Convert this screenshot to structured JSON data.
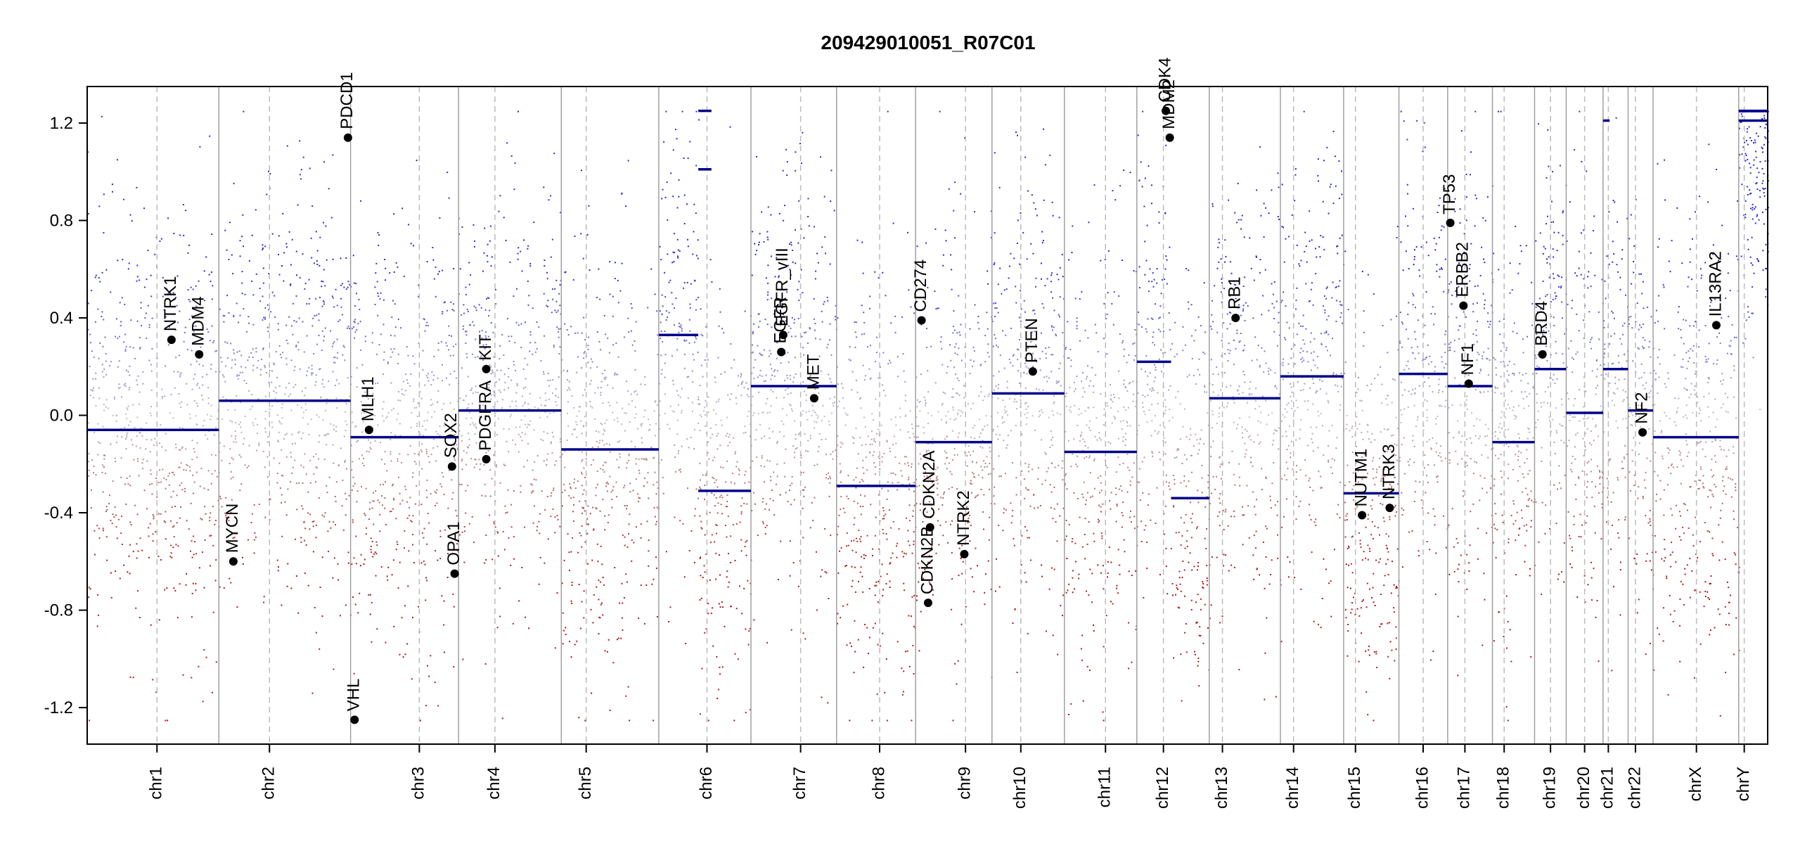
{
  "chart_data": {
    "type": "scatter",
    "title": "209429010051_R07C01",
    "xlabel": "",
    "ylabel": "",
    "ylim": [
      -1.35,
      1.35
    ],
    "yticks": [
      -1.2,
      -0.8,
      -0.4,
      0.0,
      0.4,
      0.8,
      1.2
    ],
    "ytick_labels": [
      "-1.2",
      "-0.8",
      "-0.4",
      "0.0",
      "0.4",
      "0.8",
      "1.2"
    ],
    "colors": {
      "gain": "#2b2bd4",
      "loss": "#b01818",
      "neutral": "#b8b8b8",
      "segment": "#00008b",
      "gene_point": "#000000"
    },
    "chromosomes": [
      {
        "name": "chr1",
        "start": 0,
        "end": 1000,
        "centromere": 530
      },
      {
        "name": "chr2",
        "start": 1000,
        "end": 2000,
        "centromere": 384
      },
      {
        "name": "chr3",
        "start": 2000,
        "end": 2820,
        "centromere": 522
      },
      {
        "name": "chr4",
        "start": 2820,
        "end": 3600,
        "centromere": 276
      },
      {
        "name": "chr5",
        "start": 3600,
        "end": 4340,
        "centromere": 189
      },
      {
        "name": "chr6",
        "start": 4340,
        "end": 5040,
        "centromere": 366
      },
      {
        "name": "chr7",
        "start": 5040,
        "end": 5690,
        "centromere": 377
      },
      {
        "name": "chr8",
        "start": 5690,
        "end": 6290,
        "centromere": 327
      },
      {
        "name": "chr9",
        "start": 6290,
        "end": 6870,
        "centromere": 379
      },
      {
        "name": "chr10",
        "start": 6870,
        "end": 7420,
        "centromere": 219
      },
      {
        "name": "chr11",
        "start": 7420,
        "end": 7970,
        "centromere": 312
      },
      {
        "name": "chr12",
        "start": 7970,
        "end": 8520,
        "centromere": 202
      },
      {
        "name": "chr13",
        "start": 8520,
        "end": 9060,
        "centromere": 100
      },
      {
        "name": "chr14",
        "start": 9060,
        "end": 9540,
        "centromere": 100
      },
      {
        "name": "chr15",
        "start": 9540,
        "end": 9960,
        "centromere": 90
      },
      {
        "name": "chr16",
        "start": 9960,
        "end": 10330,
        "centromere": 184
      },
      {
        "name": "chr17",
        "start": 10330,
        "end": 10670,
        "centromere": 131
      },
      {
        "name": "chr18",
        "start": 10670,
        "end": 10990,
        "centromere": 89
      },
      {
        "name": "chr19",
        "start": 10990,
        "end": 11230,
        "centromere": 121
      },
      {
        "name": "chr20",
        "start": 11230,
        "end": 11510,
        "centromere": 140
      },
      {
        "name": "chr21",
        "start": 11510,
        "end": 11700,
        "centromere": 40
      },
      {
        "name": "chr22",
        "start": 11700,
        "end": 11890,
        "centromere": 56
      },
      {
        "name": "chrX",
        "start": 11890,
        "end": 12540,
        "centromere": 329
      },
      {
        "name": "chrY",
        "start": 12540,
        "end": 12760,
        "centromere": 42
      }
    ],
    "segments": [
      {
        "chr": "chr1",
        "from": 0,
        "to": 1000,
        "value": -0.06
      },
      {
        "chr": "chr2",
        "from": 1000,
        "to": 2000,
        "value": 0.06
      },
      {
        "chr": "chr3",
        "from": 2000,
        "to": 2820,
        "value": -0.09
      },
      {
        "chr": "chr4",
        "from": 2820,
        "to": 3600,
        "value": 0.02
      },
      {
        "chr": "chr5",
        "from": 3600,
        "to": 4340,
        "value": -0.14
      },
      {
        "chr": "chr6",
        "from": 4340,
        "to": 4640,
        "value": 0.33
      },
      {
        "chr": "chr6",
        "from": 4640,
        "to": 5040,
        "value": -0.31
      },
      {
        "chr": "chr6",
        "from": 4640,
        "to": 4740,
        "value": 1.01
      },
      {
        "chr": "chr6",
        "from": 4640,
        "to": 4740,
        "value": 1.25
      },
      {
        "chr": "chr7",
        "from": 5040,
        "to": 5690,
        "value": 0.12
      },
      {
        "chr": "chr8",
        "from": 5690,
        "to": 6290,
        "value": -0.29
      },
      {
        "chr": "chr9",
        "from": 6290,
        "to": 6870,
        "value": -0.11
      },
      {
        "chr": "chr10",
        "from": 6870,
        "to": 7420,
        "value": 0.09
      },
      {
        "chr": "chr11",
        "from": 7420,
        "to": 7970,
        "value": -0.15
      },
      {
        "chr": "chr12",
        "from": 7970,
        "to": 8230,
        "value": 0.22
      },
      {
        "chr": "chr12",
        "from": 8230,
        "to": 8520,
        "value": -0.34
      },
      {
        "chr": "chr13",
        "from": 8520,
        "to": 9060,
        "value": 0.07
      },
      {
        "chr": "chr14",
        "from": 9060,
        "to": 9540,
        "value": 0.16
      },
      {
        "chr": "chr15",
        "from": 9540,
        "to": 9960,
        "value": -0.32
      },
      {
        "chr": "chr16",
        "from": 9960,
        "to": 10330,
        "value": 0.17
      },
      {
        "chr": "chr17",
        "from": 10330,
        "to": 10670,
        "value": 0.12
      },
      {
        "chr": "chr18",
        "from": 10670,
        "to": 10990,
        "value": -0.11
      },
      {
        "chr": "chr19",
        "from": 10990,
        "to": 11230,
        "value": 0.19
      },
      {
        "chr": "chr20",
        "from": 11230,
        "to": 11510,
        "value": 0.01
      },
      {
        "chr": "chr21",
        "from": 11510,
        "to": 11700,
        "value": 0.19
      },
      {
        "chr": "chr21",
        "from": 11510,
        "to": 11560,
        "value": 1.21
      },
      {
        "chr": "chr22",
        "from": 11700,
        "to": 11890,
        "value": 0.02
      },
      {
        "chr": "chrX",
        "from": 11890,
        "to": 12540,
        "value": -0.09
      },
      {
        "chr": "chrY",
        "from": 12540,
        "to": 12760,
        "value": 1.21
      },
      {
        "chr": "chrY",
        "from": 12540,
        "to": 12760,
        "value": 1.25
      }
    ],
    "genes": [
      {
        "name": "NTRK1",
        "x": 640,
        "y": 0.31
      },
      {
        "name": "MDM4",
        "x": 850,
        "y": 0.25
      },
      {
        "name": "MYCN",
        "x": 1110,
        "y": -0.6
      },
      {
        "name": "PDCD1",
        "x": 1980,
        "y": 1.14
      },
      {
        "name": "VHL",
        "x": 2030,
        "y": -1.25
      },
      {
        "name": "MLH1",
        "x": 2140,
        "y": -0.06
      },
      {
        "name": "SOX2",
        "x": 2770,
        "y": -0.21
      },
      {
        "name": "OPA1",
        "x": 2790,
        "y": -0.65
      },
      {
        "name": "KIT",
        "x": 3030,
        "y": 0.19
      },
      {
        "name": "PDGFRA",
        "x": 3030,
        "y": -0.18
      },
      {
        "name": "EGFR",
        "x": 5270,
        "y": 0.26
      },
      {
        "name": "EGFR_vIII",
        "x": 5285,
        "y": 0.33
      },
      {
        "name": "MET",
        "x": 5520,
        "y": 0.07
      },
      {
        "name": "CD274",
        "x": 6335,
        "y": 0.39
      },
      {
        "name": "CDKN2A",
        "x": 6400,
        "y": -0.46
      },
      {
        "name": "CDKN2B",
        "x": 6385,
        "y": -0.77
      },
      {
        "name": "NTRK2",
        "x": 6660,
        "y": -0.57
      },
      {
        "name": "PTEN",
        "x": 7180,
        "y": 0.18
      },
      {
        "name": "CDK4",
        "x": 8190,
        "y": 1.25
      },
      {
        "name": "MDM2",
        "x": 8220,
        "y": 1.14
      },
      {
        "name": "RB1",
        "x": 8720,
        "y": 0.4
      },
      {
        "name": "NUTM1",
        "x": 9680,
        "y": -0.41
      },
      {
        "name": "NTRK3",
        "x": 9890,
        "y": -0.38
      },
      {
        "name": "TP53",
        "x": 10350,
        "y": 0.79
      },
      {
        "name": "ERBB2",
        "x": 10450,
        "y": 0.45
      },
      {
        "name": "NF1",
        "x": 10490,
        "y": 0.13
      },
      {
        "name": "BRD4",
        "x": 11050,
        "y": 0.25
      },
      {
        "name": "NF2",
        "x": 11810,
        "y": -0.07
      },
      {
        "name": "IL13RA2",
        "x": 12370,
        "y": 0.37
      }
    ],
    "grid": false,
    "legend": "none"
  }
}
